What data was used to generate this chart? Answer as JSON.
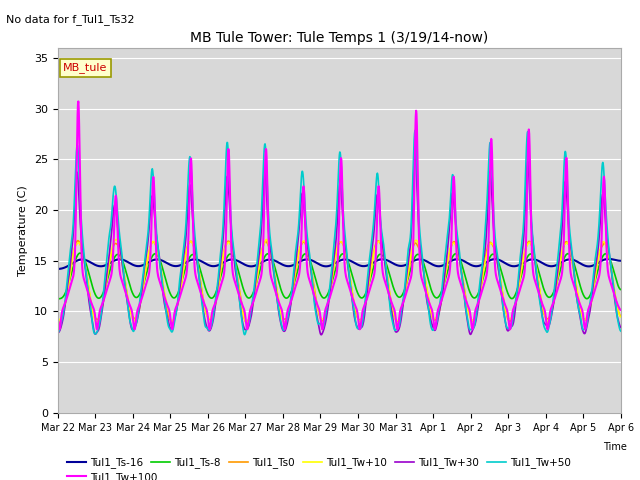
{
  "title": "MB Tule Tower: Tule Temps 1 (3/19/14-now)",
  "no_data_text": "No data for f_Tul1_Ts32",
  "site_label": "MB_tule",
  "xlabel": "Time",
  "ylabel": "Temperature (C)",
  "ylim": [
    0,
    36
  ],
  "yticks": [
    0,
    5,
    10,
    15,
    20,
    25,
    30,
    35
  ],
  "background_color": "#d8d8d8",
  "legend_entries": [
    {
      "label": "Tul1_Ts-16",
      "color": "#000099",
      "lw": 1.5
    },
    {
      "label": "Tul1_Ts-8",
      "color": "#00cc00",
      "lw": 1.2
    },
    {
      "label": "Tul1_Ts0",
      "color": "#ff9900",
      "lw": 1.2
    },
    {
      "label": "Tul1_Tw+10",
      "color": "#ffff00",
      "lw": 1.2
    },
    {
      "label": "Tul1_Tw+30",
      "color": "#9900cc",
      "lw": 1.2
    },
    {
      "label": "Tul1_Tw+50",
      "color": "#00cccc",
      "lw": 1.2
    },
    {
      "label": "Tul1_Tw+100",
      "color": "#ff00ff",
      "lw": 1.5
    }
  ],
  "xtick_labels": [
    "Mar 22",
    "Mar 23",
    "Mar 24",
    "Mar 25",
    "Mar 26",
    "Mar 27",
    "Mar 28",
    "Mar 29",
    "Mar 30",
    "Mar 31",
    "Apr 1",
    "Apr 2",
    "Apr 3",
    "Apr 4",
    "Apr 5",
    "Apr 6"
  ],
  "fig_width": 6.4,
  "fig_height": 4.8,
  "dpi": 100
}
